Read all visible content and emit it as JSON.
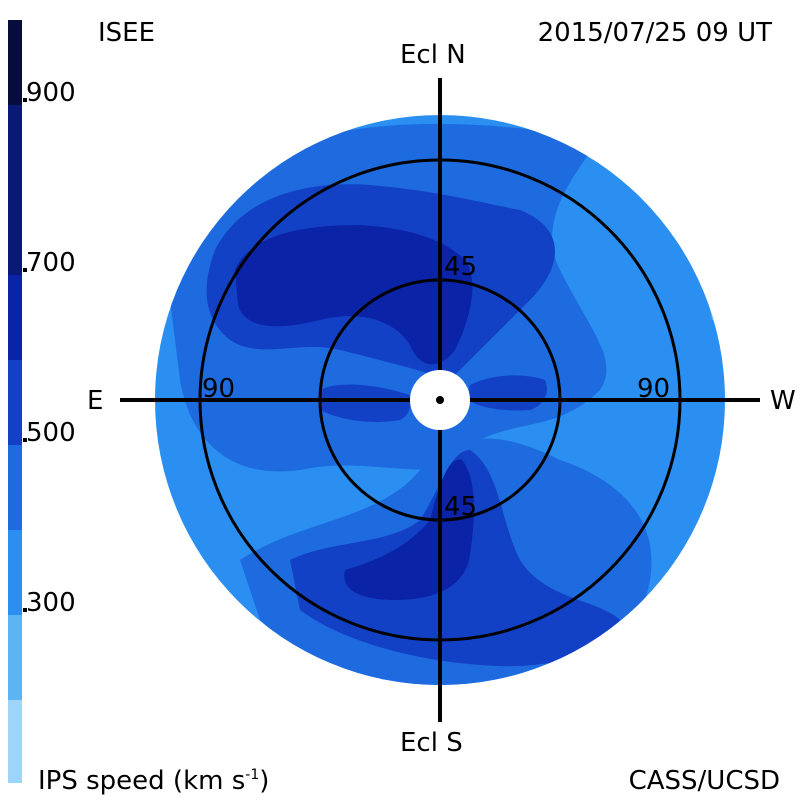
{
  "header": {
    "left_label": "ISEE",
    "timestamp": "2015/07/25 09 UT"
  },
  "footer": {
    "quantity_label": "IPS speed (km s",
    "quantity_exponent": "-1",
    "quantity_close": ")",
    "credit": "CASS/UCSD"
  },
  "axes": {
    "north": "Ecl N",
    "south": "Ecl S",
    "east": "E",
    "west": "W",
    "inner_ring_top": "45",
    "inner_ring_bottom": "45",
    "outer_ring_left": "90",
    "outer_ring_right": "90"
  },
  "colorbar": {
    "ticks": [
      {
        "label": "900"
      },
      {
        "label": "700"
      },
      {
        "label": "500"
      },
      {
        "label": "300"
      }
    ],
    "colors": [
      "#060d3a",
      "#0a1878",
      "#0b23a6",
      "#1341c6",
      "#1e6be0",
      "#2a8ff0",
      "#5bb4f4",
      "#9dd4f8"
    ]
  },
  "palette": {
    "disk_base": "#2a8ff0",
    "mid_blue": "#1e6be0",
    "deep_blue": "#1341c6",
    "navy": "#0b23a6",
    "light_blue": "#5bb4f4"
  }
}
